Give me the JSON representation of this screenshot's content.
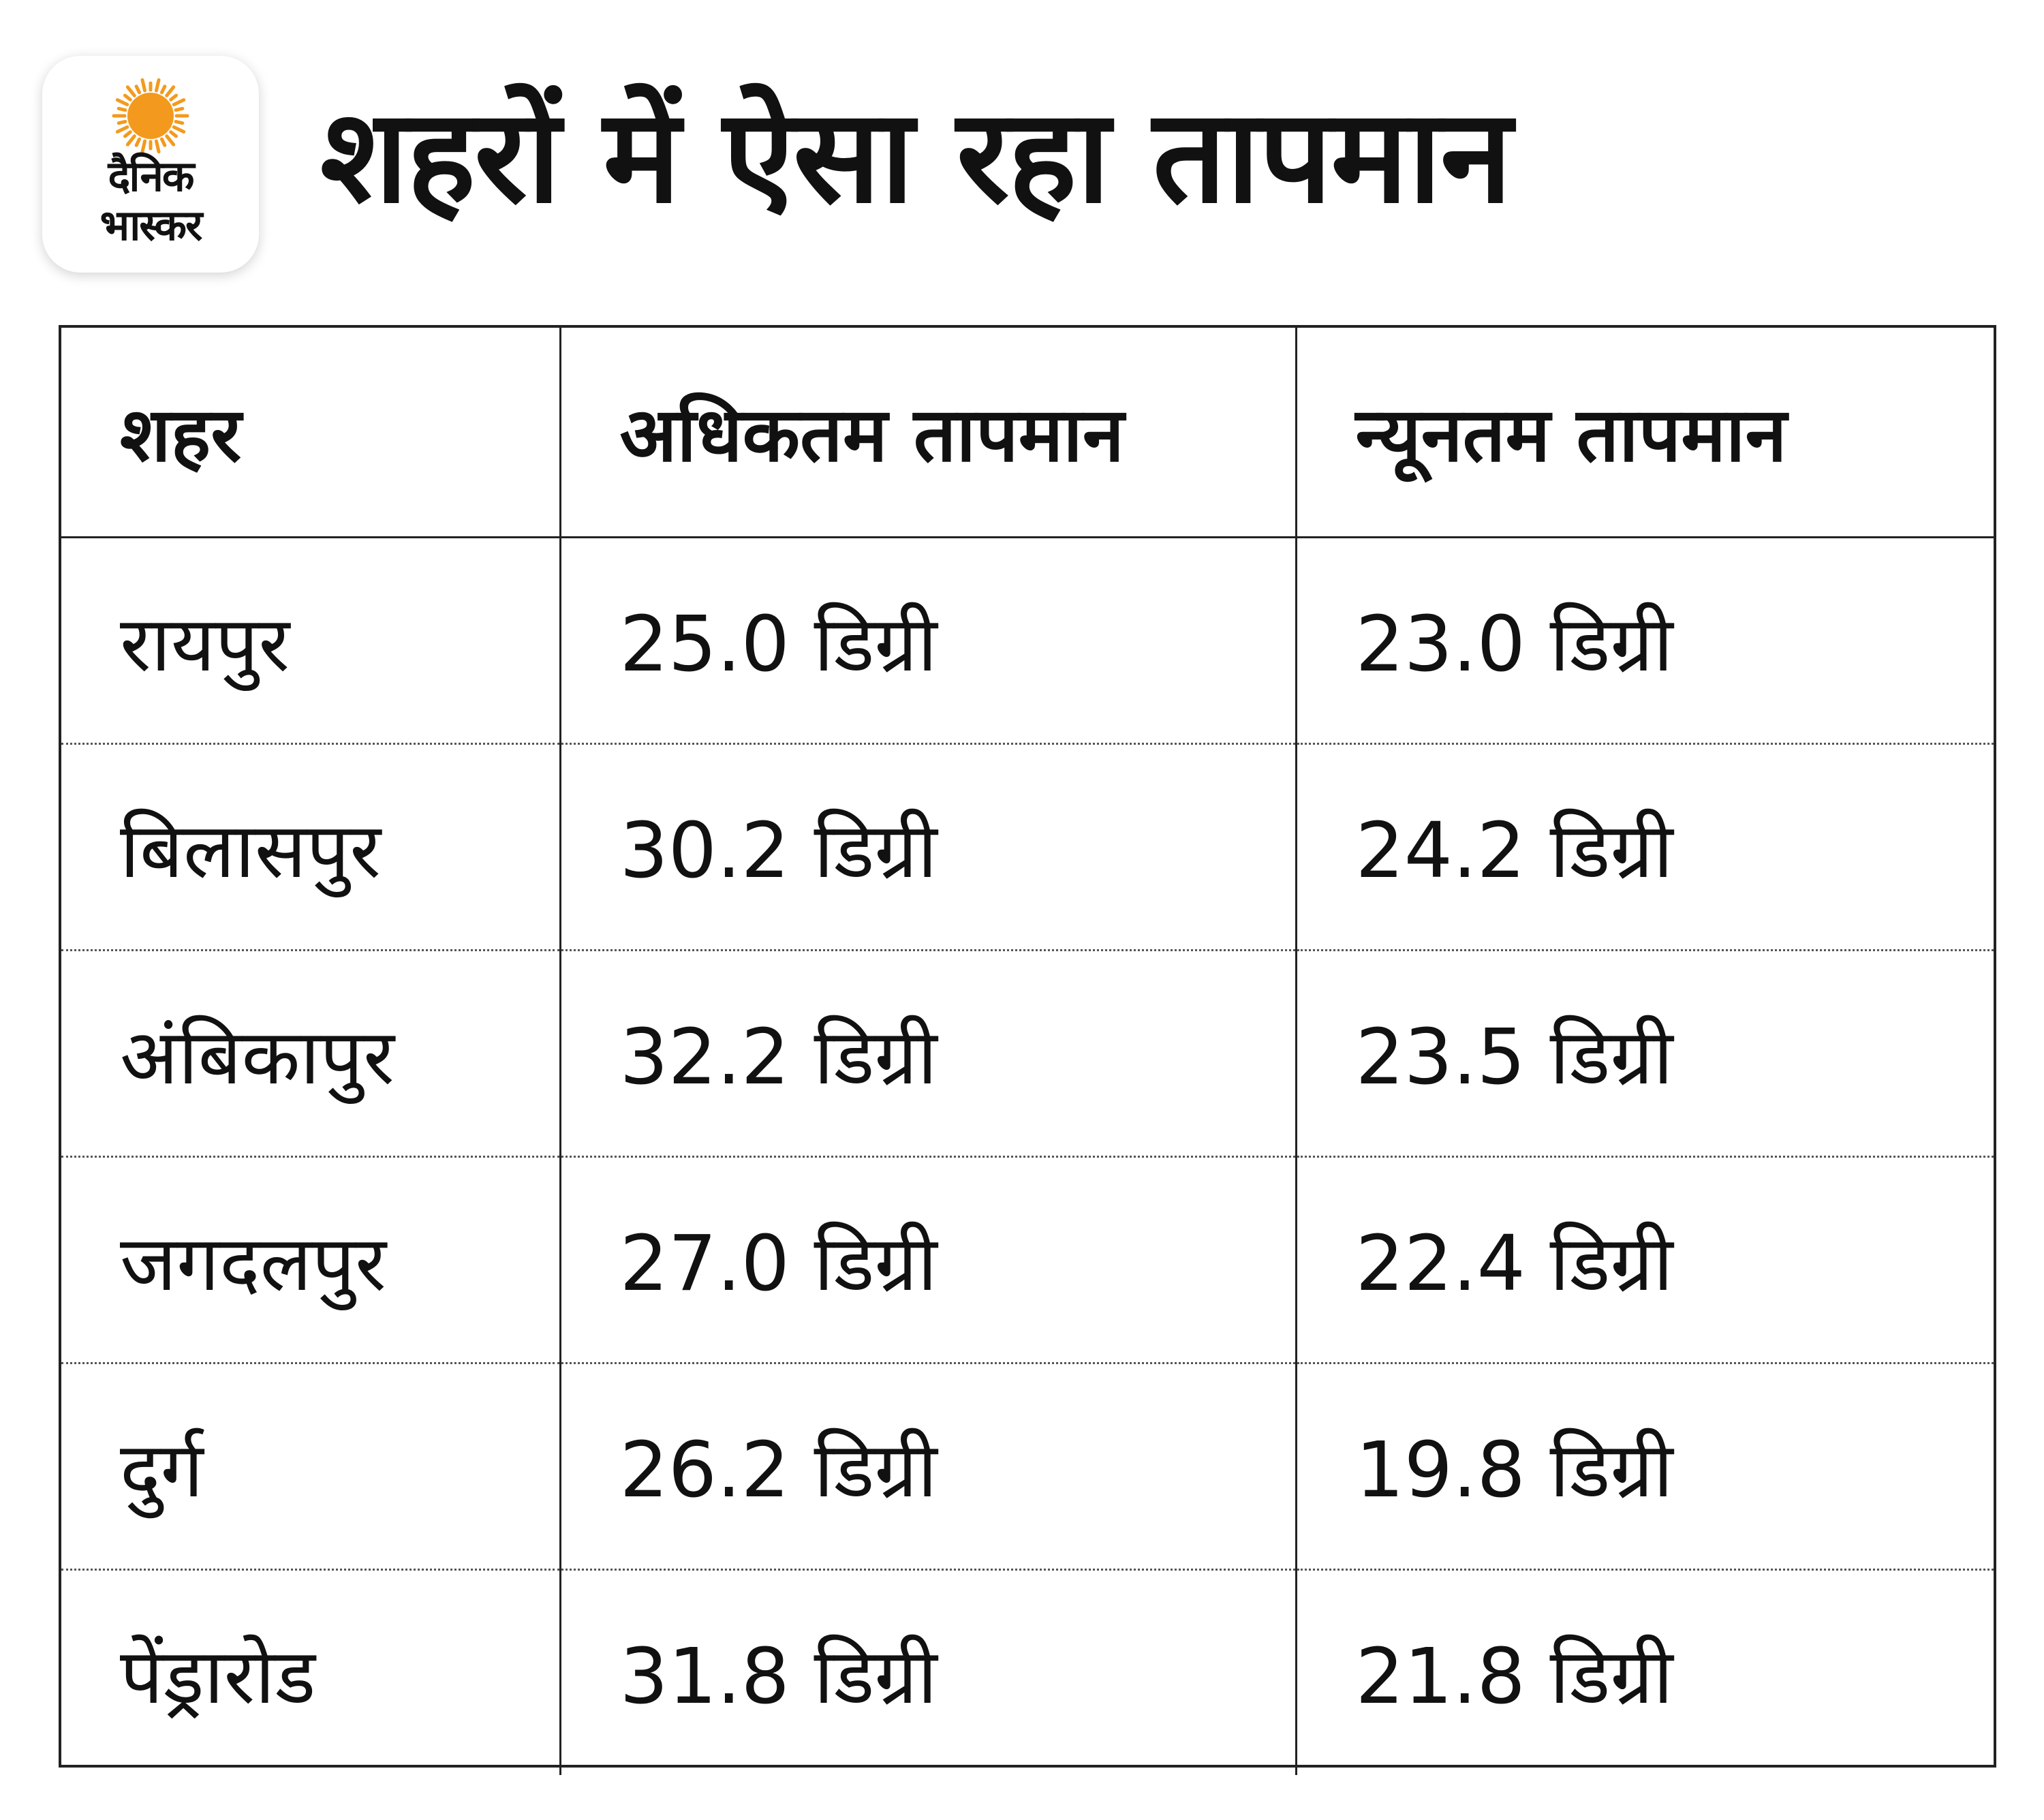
{
  "logo": {
    "line1": "दैनिक",
    "line2": "भास्कर",
    "sun_color": "#f39a1e"
  },
  "title": "शहरों में ऐसा रहा तापमान",
  "table": {
    "headers": [
      "शहर",
      "अधिकतम तापमान",
      "न्यूनतम तापमान"
    ],
    "rows": [
      {
        "city": "रायपुर",
        "max": "25.0 डिग्री",
        "min": "23.0 डिग्री"
      },
      {
        "city": "बिलासपुर",
        "max": "30.2 डिग्री",
        "min": "24.2 डिग्री"
      },
      {
        "city": "अंबिकापुर",
        "max": "32.2 डिग्री",
        "min": "23.5 डिग्री"
      },
      {
        "city": "जगदलपुर",
        "max": "27.0 डिग्री",
        "min": "22.4 डिग्री"
      },
      {
        "city": "दुर्ग",
        "max": "26.2 डिग्री",
        "min": "19.8 डिग्री"
      },
      {
        "city": "पेंड्रारोड",
        "max": "31.8 डिग्री",
        "min": "21.8 डिग्री"
      }
    ]
  }
}
